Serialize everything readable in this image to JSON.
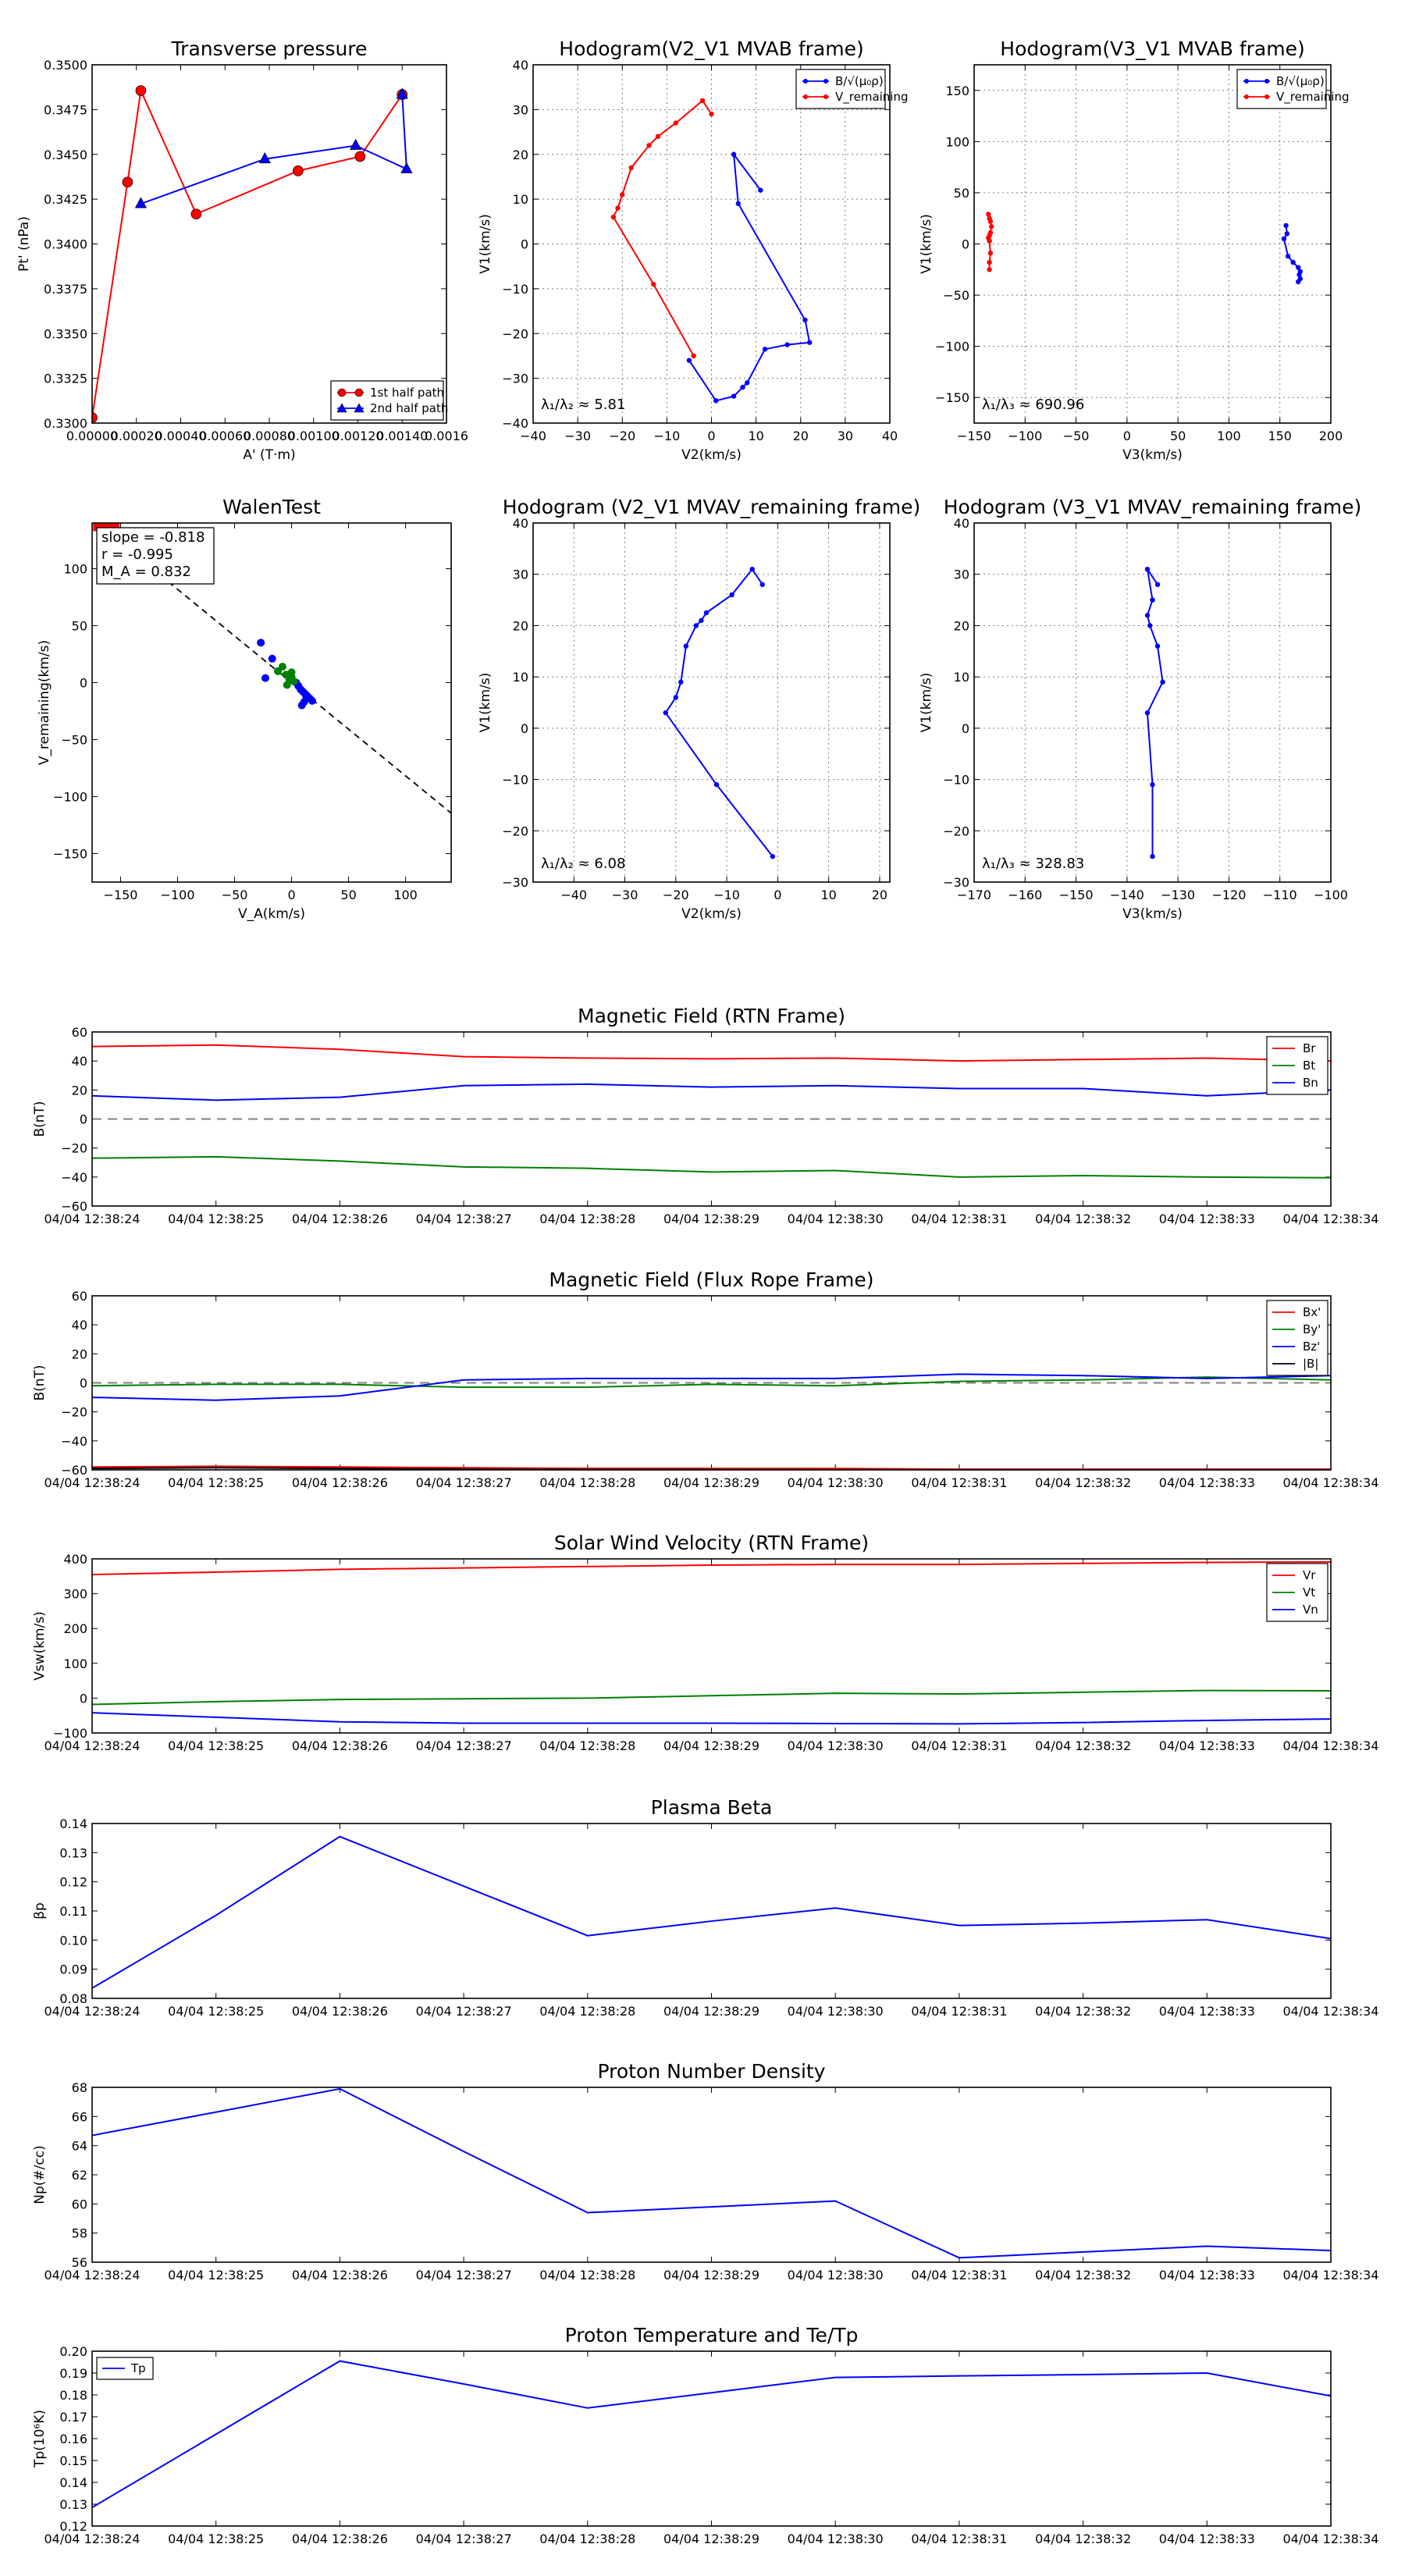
{
  "chart_data": [
    {
      "id": "tp",
      "type": "line",
      "title": "Transverse pressure",
      "xlabel": "A' (T·m)",
      "ylabel": "Pt' (nPa)",
      "xlim": [
        0,
        0.0016
      ],
      "ylim": [
        0.33,
        0.35
      ],
      "xticks": [
        0,
        0.0002,
        0.0004,
        0.0006,
        0.0008,
        0.001,
        0.0012,
        0.0014,
        0.0016
      ],
      "xticklabels": [
        "0.00000",
        "0.00020",
        "0.00040",
        "0.00060",
        "0.00080",
        "0.00100",
        "0.00120",
        "0.00140",
        "0.0016"
      ],
      "yticks": [
        0.33,
        0.3325,
        0.335,
        0.3375,
        0.34,
        0.3425,
        0.345,
        0.3475,
        0.35
      ],
      "yticklabels": [
        "0.3300",
        "0.3325",
        "0.3350",
        "0.3375",
        "0.3400",
        "0.3425",
        "0.3450",
        "0.3475",
        "0.3500"
      ],
      "grid": false,
      "legend": "lower-right",
      "series": [
        {
          "name": "1st half path",
          "color": "#ff0000",
          "marker": "circle",
          "x": [
            0.0,
            0.00016,
            0.00022,
            0.00047,
            0.00093,
            0.00121,
            0.0014
          ],
          "y": [
            0.3303,
            0.34345,
            0.34856,
            0.34167,
            0.34408,
            0.34488,
            0.34834
          ]
        },
        {
          "name": "2nd half path",
          "color": "#0000ff",
          "marker": "triangle",
          "x": [
            0.0014,
            0.00142,
            0.00119,
            0.00078,
            0.00022
          ],
          "y": [
            0.34834,
            0.34418,
            0.34549,
            0.34474,
            0.34224
          ]
        }
      ]
    },
    {
      "id": "h21",
      "type": "line",
      "title": "Hodogram(V2_V1 MVAB frame)",
      "xlabel": "V2(km/s)",
      "ylabel": "V1(km/s)",
      "xlim": [
        -40,
        40
      ],
      "ylim": [
        -40,
        40
      ],
      "xticks": [
        -40,
        -30,
        -20,
        -10,
        0,
        10,
        20,
        30,
        40
      ],
      "xticklabels": [
        "−40",
        "−30",
        "−20",
        "−10",
        "0",
        "10",
        "20",
        "30",
        "40"
      ],
      "yticks": [
        -40,
        -30,
        -20,
        -10,
        0,
        10,
        20,
        30,
        40
      ],
      "yticklabels": [
        "−40",
        "−30",
        "−20",
        "−10",
        "0",
        "10",
        "20",
        "30",
        "40"
      ],
      "grid": true,
      "legend": "top-right",
      "annotation": "λ₁/λ₂ ≈ 5.81",
      "series": [
        {
          "name": "B/√(μ₀ρ)",
          "color": "#0000ff",
          "x": [
            11,
            5,
            6,
            21,
            22,
            17,
            12,
            8,
            7,
            5,
            1,
            -5
          ],
          "y": [
            12,
            20,
            9,
            -17,
            -22,
            -22.5,
            -23.5,
            -31,
            -32,
            -34,
            -35,
            -26
          ]
        },
        {
          "name": "V_remaining",
          "color": "#ff0000",
          "x": [
            0,
            -2,
            -8,
            -12,
            -14,
            -18,
            -20,
            -21,
            -22,
            -13,
            -4
          ],
          "y": [
            29,
            32,
            27,
            24,
            22,
            17,
            11,
            8,
            6,
            -9,
            -25
          ]
        }
      ]
    },
    {
      "id": "h31",
      "type": "line",
      "title": "Hodogram(V3_V1 MVAB frame)",
      "xlabel": "V3(km/s)",
      "ylabel": "V1(km/s)",
      "xlim": [
        -150,
        200
      ],
      "ylim": [
        -175,
        175
      ],
      "xticks": [
        -150,
        -100,
        -50,
        0,
        50,
        100,
        150,
        200
      ],
      "xticklabels": [
        "−150",
        "−100",
        "−50",
        "0",
        "50",
        "100",
        "150",
        "200"
      ],
      "yticks": [
        -150,
        -100,
        -50,
        0,
        50,
        100,
        150
      ],
      "yticklabels": [
        "−150",
        "−100",
        "−50",
        "0",
        "50",
        "100",
        "150"
      ],
      "grid": true,
      "legend": "top-right",
      "annotation": "λ₁/λ₃ ≈ 690.96",
      "series": [
        {
          "name": "B/√(μ₀ρ)",
          "color": "#0000ff",
          "x": [
            156,
            157,
            154,
            158,
            163,
            168,
            170,
            169,
            170,
            168
          ],
          "y": [
            18,
            10,
            5,
            -12,
            -18,
            -23,
            -27,
            -30,
            -34,
            -37
          ]
        },
        {
          "name": "V_remaining",
          "color": "#ff0000",
          "x": [
            -136,
            -135,
            -134,
            -133,
            -134,
            -135,
            -136,
            -135,
            -134,
            -135,
            -135
          ],
          "y": [
            29,
            25,
            22,
            17,
            11,
            8,
            6,
            3,
            -9,
            -18,
            -25
          ]
        }
      ]
    },
    {
      "id": "walen",
      "type": "scatter",
      "title": "WalenTest",
      "xlabel": "V_A(km/s)",
      "ylabel": "V_remaining(km/s)",
      "xlim": [
        -175,
        140
      ],
      "ylim": [
        -175,
        140
      ],
      "xticks": [
        -150,
        -100,
        -50,
        0,
        50,
        100
      ],
      "xticklabels": [
        "−150",
        "−100",
        "−50",
        "0",
        "50",
        "100"
      ],
      "yticks": [
        -150,
        -100,
        -50,
        0,
        50,
        100
      ],
      "yticklabels": [
        "−150",
        "−100",
        "−50",
        "0",
        "50",
        "100"
      ],
      "grid": false,
      "fit": {
        "slope": -0.818,
        "intercept": 0
      },
      "stats": [
        "slope = -0.818",
        "r = -0.995",
        "M_A = 0.832"
      ],
      "series": [
        {
          "name": "blue",
          "color": "#0000ff",
          "x": [
            -27,
            -17,
            -23,
            4,
            6,
            8,
            10,
            12,
            14,
            16,
            18,
            9,
            11,
            13
          ],
          "y": [
            35,
            21,
            4,
            0,
            -3,
            -6,
            -8,
            -10,
            -12,
            -14,
            -16,
            -20,
            -17,
            -13
          ]
        },
        {
          "name": "green",
          "color": "#008000",
          "x": [
            -12,
            -8,
            -5,
            -2,
            0,
            2,
            -4,
            0
          ],
          "y": [
            10,
            14,
            7,
            3,
            9,
            1,
            -2,
            5
          ]
        }
      ],
      "red_points": {
        "color": "#ff0000",
        "x": [
          -170,
          -165,
          -160,
          -155
        ],
        "y": [
          137,
          136,
          137,
          138
        ]
      }
    },
    {
      "id": "h21r",
      "type": "line",
      "title": "Hodogram (V2_V1 MVAV_remaining frame)",
      "xlabel": "V2(km/s)",
      "ylabel": "V1(km/s)",
      "xlim": [
        -48,
        22
      ],
      "ylim": [
        -30,
        40
      ],
      "xticks": [
        -40,
        -30,
        -20,
        -10,
        0,
        10,
        20
      ],
      "xticklabels": [
        "−40",
        "−30",
        "−20",
        "−10",
        "0",
        "10",
        "20"
      ],
      "yticks": [
        -30,
        -20,
        -10,
        0,
        10,
        20,
        30,
        40
      ],
      "yticklabels": [
        "−30",
        "−20",
        "−10",
        "0",
        "10",
        "20",
        "30",
        "40"
      ],
      "grid": true,
      "annotation": "λ₁/λ₂ ≈ 6.08",
      "series": [
        {
          "name": "V",
          "color": "#0000ff",
          "x": [
            -3,
            -5,
            -9,
            -14,
            -15,
            -16,
            -18,
            -19,
            -20,
            -22,
            -12,
            -1
          ],
          "y": [
            28,
            31,
            26,
            22.5,
            21,
            20,
            16,
            9,
            6,
            3,
            -11,
            -25
          ]
        }
      ]
    },
    {
      "id": "h31r",
      "type": "line",
      "title": "Hodogram (V3_V1 MVAV_remaining frame)",
      "xlabel": "V3(km/s)",
      "ylabel": "V1(km/s)",
      "xlim": [
        -170,
        -100
      ],
      "ylim": [
        -30,
        40
      ],
      "xticks": [
        -170,
        -160,
        -150,
        -140,
        -130,
        -120,
        -110,
        -100
      ],
      "xticklabels": [
        "−170",
        "−160",
        "−150",
        "−140",
        "−130",
        "−120",
        "−110",
        "−100"
      ],
      "yticks": [
        -30,
        -20,
        -10,
        0,
        10,
        20,
        30,
        40
      ],
      "yticklabels": [
        "−30",
        "−20",
        "−10",
        "0",
        "10",
        "20",
        "30",
        "40"
      ],
      "grid": true,
      "annotation": "λ₁/λ₃ ≈ 328.83",
      "series": [
        {
          "name": "V",
          "color": "#0000ff",
          "x": [
            -134,
            -136,
            -135,
            -136,
            -135.5,
            -134,
            -133,
            -136,
            -135,
            -135
          ],
          "y": [
            28,
            31,
            25,
            22,
            20,
            16,
            9,
            3,
            -11,
            -25
          ]
        }
      ]
    },
    {
      "id": "brtn",
      "type": "line",
      "title": "Magnetic Field (RTN Frame)",
      "ylabel": "B(nT)",
      "ylim": [
        -60,
        60
      ],
      "yticks": [
        -60,
        -40,
        -20,
        0,
        20,
        40,
        60
      ],
      "yticklabels": [
        "−60",
        "−40",
        "−20",
        "0",
        "20",
        "40",
        "60"
      ],
      "zero_line": true,
      "legend": "top-right",
      "series": [
        {
          "name": "Br",
          "color": "#ff0000",
          "values": [
            50,
            51,
            48,
            43,
            42,
            41.5,
            42,
            40,
            41,
            42,
            40
          ]
        },
        {
          "name": "Bt",
          "color": "#008000",
          "values": [
            -27,
            -26,
            -29,
            -33,
            -34,
            -36.5,
            -35.5,
            -40,
            -39,
            -40,
            -40.5
          ]
        },
        {
          "name": "Bn",
          "color": "#0000ff",
          "values": [
            16,
            13,
            15,
            23,
            24,
            22,
            23,
            21,
            21,
            16,
            20
          ]
        }
      ]
    },
    {
      "id": "bfr",
      "type": "line",
      "title": "Magnetic Field (Flux Rope Frame)",
      "ylabel": "B(nT)",
      "ylim": [
        -60,
        60
      ],
      "yticks": [
        -60,
        -40,
        -20,
        0,
        20,
        40,
        60
      ],
      "yticklabels": [
        "−60",
        "−40",
        "−20",
        "0",
        "20",
        "40",
        "60"
      ],
      "zero_line": true,
      "legend": "top-right",
      "series": [
        {
          "name": "Bx'",
          "color": "#ff0000",
          "values": [
            -58,
            -57.5,
            -58,
            -58.5,
            -59,
            -59,
            -59,
            -59.5,
            -59.5,
            -59.5,
            -59.5
          ]
        },
        {
          "name": "By'",
          "color": "#008000",
          "values": [
            -2,
            -1,
            -1,
            -3,
            -3,
            -1,
            -2,
            1,
            2,
            4,
            2
          ]
        },
        {
          "name": "Bz'",
          "color": "#0000ff",
          "values": [
            -10,
            -12,
            -9,
            2,
            3,
            3,
            3,
            6,
            5,
            3,
            5
          ]
        },
        {
          "name": "|B|",
          "color": "#000000",
          "values": [
            -59,
            -58.5,
            -59,
            -59.5,
            -59.8,
            -59.8,
            -59.9,
            -60,
            -60,
            -60,
            -60
          ]
        }
      ]
    },
    {
      "id": "vsw",
      "type": "line",
      "title": "Solar Wind Velocity (RTN Frame)",
      "ylabel": "Vsw(km/s)",
      "ylim": [
        -100,
        400
      ],
      "yticks": [
        -100,
        0,
        100,
        200,
        300,
        400
      ],
      "yticklabels": [
        "−100",
        "0",
        "100",
        "200",
        "300",
        "400"
      ],
      "zero_line": false,
      "legend": "top-right",
      "series": [
        {
          "name": "Vr",
          "color": "#ff0000",
          "values": [
            355,
            362,
            370,
            374,
            378,
            382,
            384,
            384,
            387,
            390,
            391
          ]
        },
        {
          "name": "Vt",
          "color": "#008000",
          "values": [
            -18,
            -10,
            -4,
            -2,
            0,
            7,
            14,
            12,
            17,
            22,
            21
          ]
        },
        {
          "name": "Vn",
          "color": "#0000ff",
          "values": [
            -42,
            -55,
            -68,
            -72,
            -72,
            -72,
            -73,
            -74,
            -70,
            -64,
            -60
          ]
        }
      ]
    },
    {
      "id": "beta",
      "type": "line",
      "title": "Plasma Beta",
      "ylabel": "βp",
      "ylim": [
        0.08,
        0.14
      ],
      "yticks": [
        0.08,
        0.09,
        0.1,
        0.11,
        0.12,
        0.13,
        0.14
      ],
      "yticklabels": [
        "0.08",
        "0.09",
        "0.10",
        "0.11",
        "0.12",
        "0.13",
        "0.14"
      ],
      "zero_line": false,
      "series": [
        {
          "name": "beta",
          "color": "#0000ff",
          "values": [
            0.0835,
            0.1085,
            0.1355,
            0.1185,
            0.1015,
            0.1065,
            0.111,
            0.105,
            0.1058,
            0.107,
            0.1005
          ]
        }
      ]
    },
    {
      "id": "np",
      "type": "line",
      "title": "Proton Number Density",
      "ylabel": "Np(#/cc)",
      "ylim": [
        56,
        68
      ],
      "yticks": [
        56,
        58,
        60,
        62,
        64,
        66,
        68
      ],
      "yticklabels": [
        "56",
        "58",
        "60",
        "62",
        "64",
        "66",
        "68"
      ],
      "zero_line": false,
      "series": [
        {
          "name": "Np",
          "color": "#0000ff",
          "values": [
            64.7,
            66.3,
            67.9,
            63.6,
            59.4,
            59.8,
            60.2,
            56.3,
            56.7,
            57.1,
            56.8
          ]
        }
      ]
    },
    {
      "id": "tpr",
      "type": "line",
      "title": "Proton Temperature and Te/Tp",
      "ylabel": "Tp(10⁶K)",
      "ylim": [
        0.12,
        0.2
      ],
      "yticks": [
        0.12,
        0.13,
        0.14,
        0.15,
        0.16,
        0.17,
        0.18,
        0.19,
        0.2
      ],
      "yticklabels": [
        "0.12",
        "0.13",
        "0.14",
        "0.15",
        "0.16",
        "0.17",
        "0.18",
        "0.19",
        "0.20"
      ],
      "zero_line": false,
      "legend": "top-left",
      "series": [
        {
          "name": "Tp",
          "color": "#0000ff",
          "values": [
            0.1285,
            0.162,
            0.1955,
            0.185,
            0.174,
            0.181,
            0.188,
            0.1887,
            0.1893,
            0.19,
            0.1795
          ]
        }
      ]
    }
  ],
  "time_labels": [
    "04/04 12:38:24",
    "04/04 12:38:25",
    "04/04 12:38:26",
    "04/04 12:38:27",
    "04/04 12:38:28",
    "04/04 12:38:29",
    "04/04 12:38:30",
    "04/04 12:38:31",
    "04/04 12:38:32",
    "04/04 12:38:33",
    "04/04 12:38:34"
  ]
}
